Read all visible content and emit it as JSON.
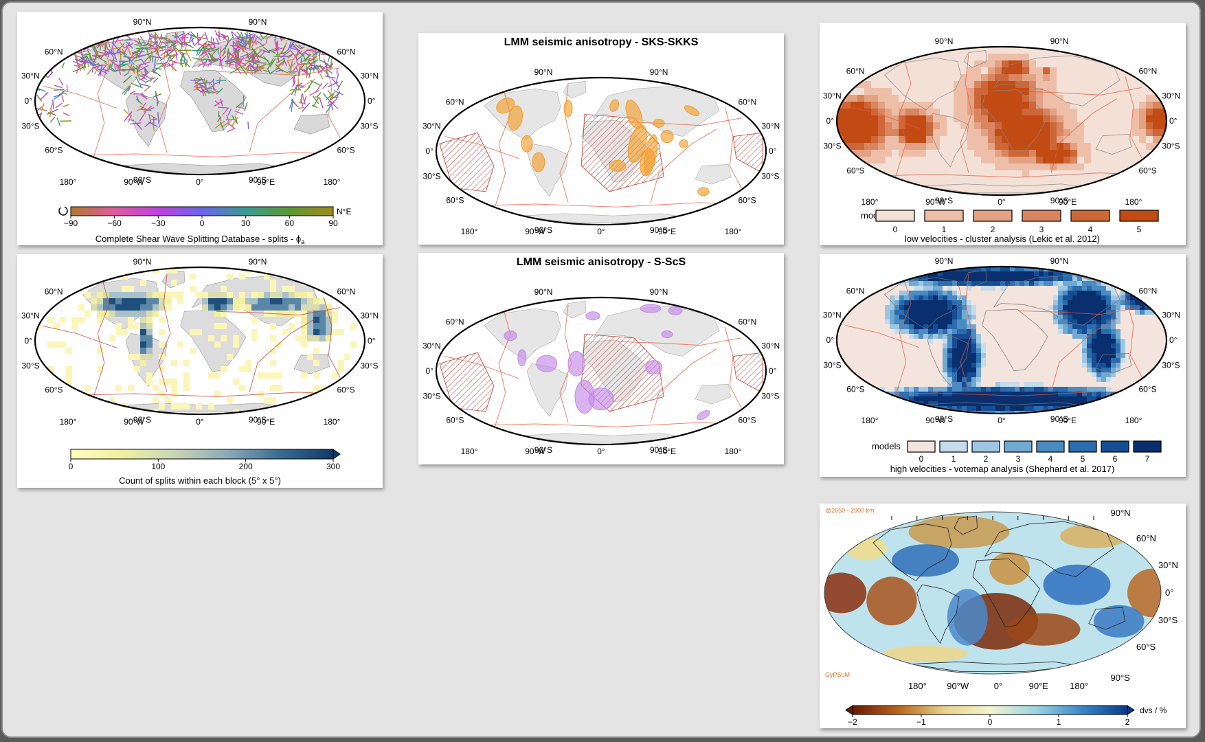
{
  "lat_labels": [
    "90°N",
    "60°N",
    "30°N",
    "0°",
    "30°S",
    "60°S",
    "90°S"
  ],
  "lon_labels": [
    "180°",
    "90°W",
    "0°",
    "90°E",
    "180°"
  ],
  "panels": {
    "splits": {
      "caption": "Complete Shear Wave Splitting Database - splits - ϕ",
      "caption_sub": "a",
      "unit": "N°E",
      "ticks": [
        "−90",
        "−60",
        "−30",
        "0",
        "30",
        "60",
        "90"
      ]
    },
    "sks": {
      "title": "LMM seismic anisotropy - SKS-SKKS",
      "blob_color": "#f2a030"
    },
    "lowvel": {
      "models_label": "models",
      "ticks": [
        "0",
        "1",
        "2",
        "3",
        "4",
        "5"
      ],
      "caption": "low velocities - cluster analysis (Lekic et al. 2012)",
      "colors": [
        "#f3e1d8",
        "#eebfa8",
        "#e3a283",
        "#d98560",
        "#cd6738",
        "#c24b14"
      ]
    },
    "count": {
      "caption": "Count of splits within each block (5° x 5°)",
      "ticks": [
        "0",
        "100",
        "200",
        "300"
      ]
    },
    "scs": {
      "title": "LMM seismic anisotropy - S-ScS",
      "blob_color": "#c58ae8"
    },
    "highvel": {
      "models_label": "models",
      "ticks": [
        "0",
        "1",
        "2",
        "3",
        "4",
        "5",
        "6",
        "7"
      ],
      "caption": "high velocities - votemap analysis (Shephard et al. 2017)",
      "colors": [
        "#f4e4de",
        "#c5dcec",
        "#9ec6e2",
        "#72a9d3",
        "#4a8bc2",
        "#2a6cae",
        "#164e95",
        "#0a2f6e"
      ]
    },
    "gypsum": {
      "depth": "@2650 - 2900 km",
      "model": "GyPSuM",
      "unit": "dvs / %",
      "ticks": [
        "−2",
        "−1",
        "0",
        "1",
        "2"
      ]
    }
  }
}
